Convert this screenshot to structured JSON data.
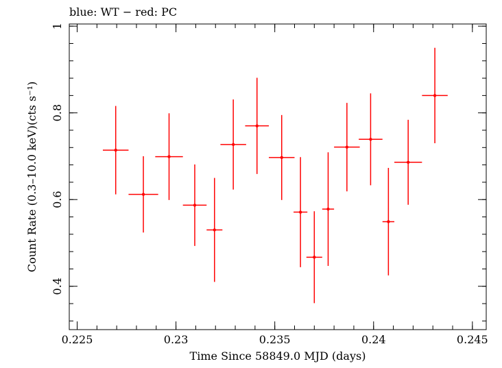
{
  "chart_data": {
    "type": "scatter",
    "title": "blue: WT − red: PC",
    "xlabel": "Time Since 58849.0 MJD (days)",
    "ylabel": "Count Rate (0.3–10.0 keV)(cts s⁻¹)",
    "xlim": [
      0.2246,
      0.2457
    ],
    "ylim": [
      0.3,
      1.005
    ],
    "xticks": [
      0.225,
      0.23,
      0.235,
      0.24,
      0.245
    ],
    "xtick_labels": [
      "0.225",
      "0.23",
      "0.235",
      "0.24",
      "0.245"
    ],
    "yticks": [
      0.4,
      0.6,
      0.8,
      1.0
    ],
    "ytick_labels": [
      "0.4",
      "0.6",
      "0.8",
      "1"
    ],
    "series": [
      {
        "name": "PC",
        "color": "#ff0000",
        "points": [
          {
            "x": 0.22695,
            "xerr": 0.00065,
            "y": 0.714,
            "yerr": 0.102
          },
          {
            "x": 0.22835,
            "xerr": 0.00075,
            "y": 0.612,
            "yerr": 0.088
          },
          {
            "x": 0.22965,
            "xerr": 0.0007,
            "y": 0.699,
            "yerr": 0.1
          },
          {
            "x": 0.23095,
            "xerr": 0.0006,
            "y": 0.587,
            "yerr": 0.094
          },
          {
            "x": 0.23195,
            "xerr": 0.0004,
            "y": 0.53,
            "yerr": 0.12
          },
          {
            "x": 0.2329,
            "xerr": 0.00065,
            "y": 0.727,
            "yerr": 0.104
          },
          {
            "x": 0.2341,
            "xerr": 0.0006,
            "y": 0.77,
            "yerr": 0.111
          },
          {
            "x": 0.23535,
            "xerr": 0.00065,
            "y": 0.697,
            "yerr": 0.098
          },
          {
            "x": 0.2363,
            "xerr": 0.00035,
            "y": 0.571,
            "yerr": 0.127
          },
          {
            "x": 0.237,
            "xerr": 0.0004,
            "y": 0.467,
            "yerr": 0.106
          },
          {
            "x": 0.2377,
            "xerr": 0.0003,
            "y": 0.578,
            "yerr": 0.131
          },
          {
            "x": 0.23865,
            "xerr": 0.00065,
            "y": 0.721,
            "yerr": 0.102
          },
          {
            "x": 0.23985,
            "xerr": 0.0006,
            "y": 0.739,
            "yerr": 0.106
          },
          {
            "x": 0.24075,
            "xerr": 0.0003,
            "y": 0.549,
            "yerr": 0.124
          },
          {
            "x": 0.24175,
            "xerr": 0.0007,
            "y": 0.686,
            "yerr": 0.098
          },
          {
            "x": 0.2431,
            "xerr": 0.00065,
            "y": 0.84,
            "yerr": 0.11
          }
        ]
      }
    ]
  }
}
